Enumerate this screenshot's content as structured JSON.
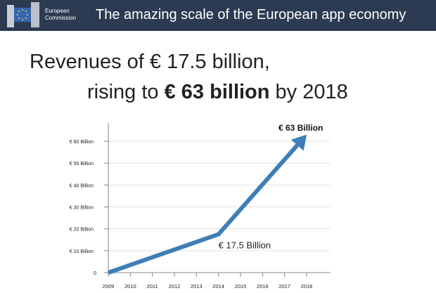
{
  "header": {
    "logo_line1": "European",
    "logo_line2": "Commission",
    "title": "The amazing scale of the European app economy",
    "background_color": "#2c3a52"
  },
  "headline": {
    "line1": "Revenues of € 17.5 billion,",
    "line2_prefix": "rising to ",
    "line2_bold": "€ 63 billion",
    "line2_suffix": " by 2018"
  },
  "chart_data": {
    "type": "line",
    "x": [
      2009,
      2014,
      2018
    ],
    "values": [
      0,
      17.5,
      63
    ],
    "xticks": [
      "2009",
      "2010",
      "2011",
      "2012",
      "2013",
      "2014",
      "2015",
      "2016",
      "2017",
      "2018"
    ],
    "yticks": [
      0,
      10,
      20,
      30,
      40,
      50,
      60
    ],
    "ytick_labels": [
      "0",
      "€ 10 Billion",
      "€ 20 Billion",
      "€ 30 Billion",
      "€ 40 Billion",
      "€ 50 Billion",
      "€ 60 Billion"
    ],
    "ylim": [
      0,
      63
    ],
    "xlim": [
      2009,
      2018
    ],
    "grid": true,
    "end_arrow": true,
    "annotations": [
      {
        "x": 2014,
        "y": 17.5,
        "text": "€ 17.5 Billion",
        "bold": false
      },
      {
        "x": 2018,
        "y": 63,
        "text": "€ 63 Billion",
        "bold": true
      }
    ],
    "line_color": "#3d7fb6"
  }
}
